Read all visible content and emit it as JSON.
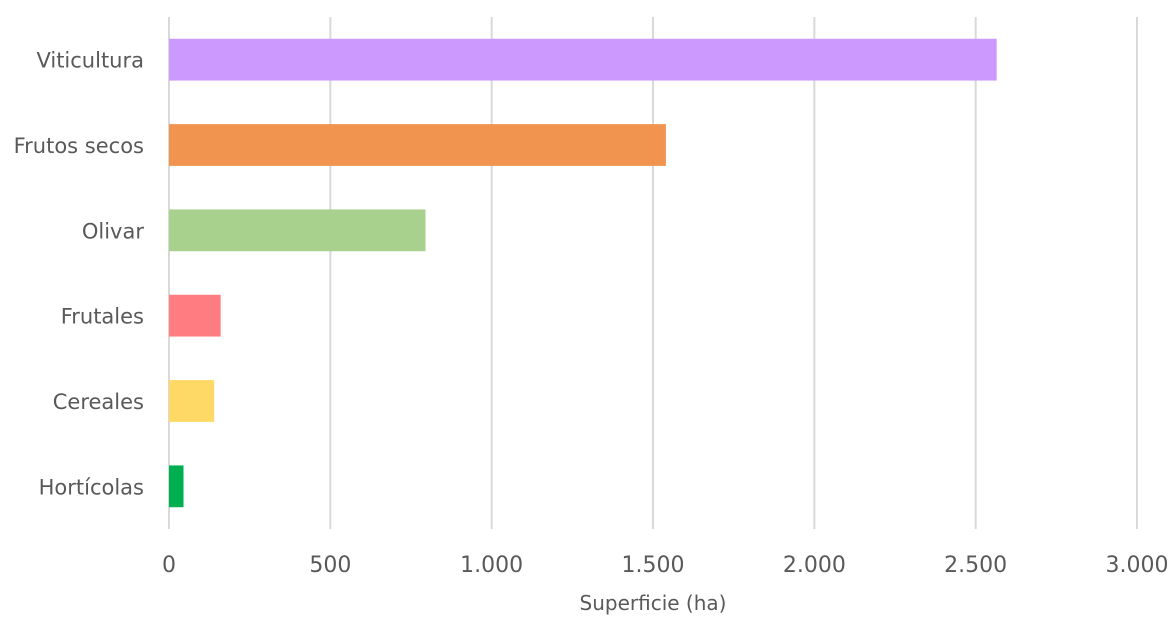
{
  "chart_data": {
    "type": "bar",
    "orientation": "horizontal",
    "title": "",
    "xlabel": "Superficie (ha)",
    "ylabel": "",
    "categories": [
      "Viticultura",
      "Frutos secos",
      "Olivar",
      "Frutales",
      "Cereales",
      "Hortícolas"
    ],
    "values": [
      2565,
      1540,
      795,
      160,
      140,
      45
    ],
    "colors": [
      "#cc99ff",
      "#f0944f",
      "#a9d18e",
      "#ff7c80",
      "#ffd966",
      "#00b050"
    ],
    "xlim": [
      0,
      3000
    ],
    "xticks": [
      0,
      500,
      1000,
      1500,
      2000,
      2500,
      3000
    ],
    "xtick_labels": [
      "0",
      "500",
      "1.000",
      "1.500",
      "2.000",
      "2.500",
      "3.000"
    ],
    "grid": "vertical",
    "legend": "none"
  }
}
